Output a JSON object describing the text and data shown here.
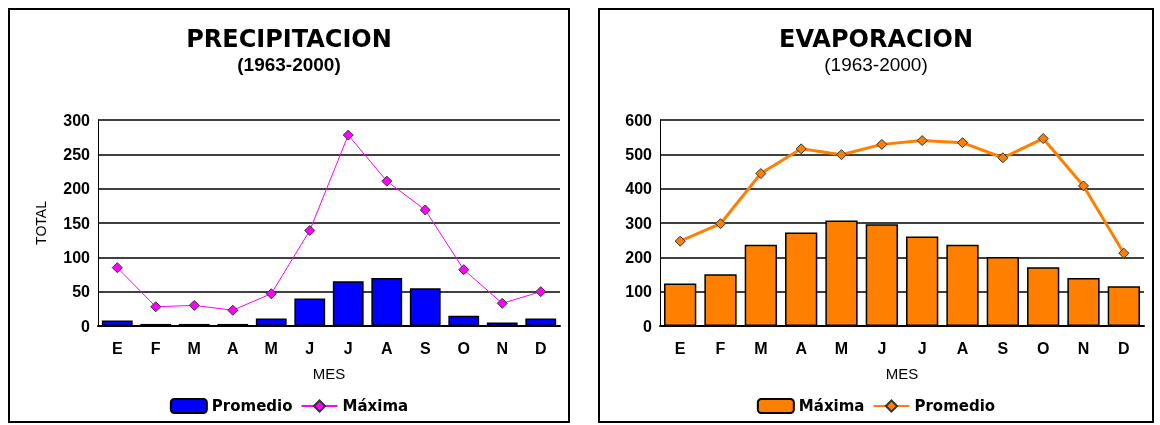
{
  "chart_data": [
    {
      "type": "bar",
      "title": "PRECIPITACION",
      "subtitle": "(1963-2000)",
      "xlabel": "MES",
      "ylabel": "TOTAL",
      "categories": [
        "E",
        "F",
        "M",
        "A",
        "M",
        "J",
        "J",
        "A",
        "S",
        "O",
        "N",
        "D"
      ],
      "ylim": [
        0,
        300
      ],
      "yticks": [
        0,
        50,
        100,
        150,
        200,
        250,
        300
      ],
      "grid": "y",
      "legend": "bottom",
      "marker": "diamond",
      "series": [
        {
          "name": "Promedio",
          "color": "#0000ff",
          "values": [
            8,
            3,
            3,
            3,
            11,
            40,
            65,
            70,
            55,
            15,
            5,
            11
          ]
        },
        {
          "name": "Máxima",
          "type": "line",
          "color": "#ff00ff",
          "values": [
            85,
            28,
            30,
            23,
            47,
            139,
            278,
            211,
            169,
            82,
            33,
            50
          ]
        }
      ]
    },
    {
      "type": "bar",
      "title": "EVAPORACION",
      "subtitle": "(1963-2000)",
      "xlabel": "MES",
      "categories": [
        "E",
        "F",
        "M",
        "A",
        "M",
        "J",
        "J",
        "A",
        "S",
        "O",
        "N",
        "D"
      ],
      "ylim": [
        0,
        600
      ],
      "yticks": [
        0,
        100,
        200,
        300,
        400,
        500,
        600
      ],
      "grid": "y",
      "legend": "bottom",
      "marker": "diamond",
      "series": [
        {
          "name": "Máxima",
          "color": "#ff8000",
          "values": [
            124,
            151,
            237,
            272,
            307,
            296,
            261,
            237,
            201,
            171,
            140,
            116
          ]
        },
        {
          "name": "Promedio",
          "type": "line",
          "color": "#ff8000",
          "values": [
            247,
            298,
            444,
            516,
            499,
            529,
            540,
            534,
            490,
            546,
            408,
            212
          ]
        }
      ]
    }
  ]
}
